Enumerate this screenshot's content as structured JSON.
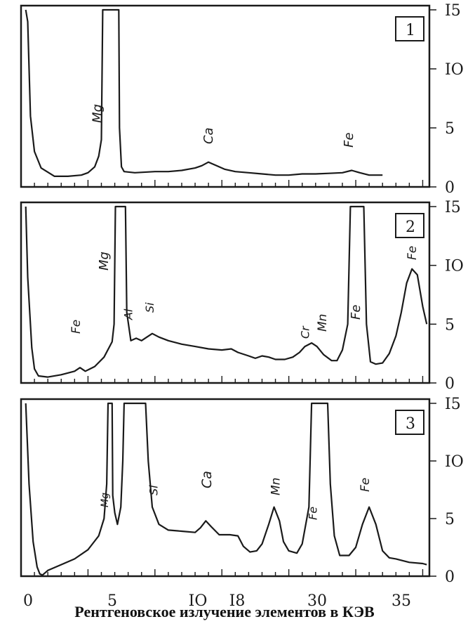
{
  "caption": "Рентгеновское излучение элементов в КЭВ",
  "x_ticks": [
    "0",
    "5",
    "IO",
    "I8",
    "30",
    "35"
  ],
  "chart_data": [
    {
      "type": "line",
      "panel": "1",
      "y_ticks": [
        "I5",
        "IO",
        "5",
        "0"
      ],
      "ylim": [
        0,
        15
      ],
      "peak_labels": [
        "Mg",
        "Ca",
        "Fe"
      ],
      "series": [
        {
          "values": [
            [
              0.35,
              15
            ],
            [
              0.5,
              14
            ],
            [
              0.7,
              6
            ],
            [
              1.0,
              3
            ],
            [
              1.5,
              1.6
            ],
            [
              2.5,
              0.9
            ],
            [
              3.5,
              0.9
            ],
            [
              4.5,
              1.0
            ],
            [
              5.0,
              1.2
            ],
            [
              5.5,
              1.7
            ],
            [
              5.8,
              2.6
            ],
            [
              6.0,
              4
            ],
            [
              6.1,
              15
            ],
            [
              7.3,
              15
            ],
            [
              7.35,
              5
            ],
            [
              7.5,
              1.7
            ],
            [
              7.7,
              1.3
            ],
            [
              8.5,
              1.2
            ],
            [
              10,
              1.3
            ],
            [
              11,
              1.3
            ],
            [
              12,
              1.4
            ],
            [
              13,
              1.6
            ],
            [
              13.5,
              1.8
            ],
            [
              14,
              2.1
            ],
            [
              14.6,
              1.8
            ],
            [
              15.2,
              1.5
            ],
            [
              16,
              1.3
            ],
            [
              17,
              1.2
            ],
            [
              18,
              1.1
            ],
            [
              19,
              1.0
            ],
            [
              20,
              1.0
            ],
            [
              21,
              1.1
            ],
            [
              22,
              1.1
            ],
            [
              23,
              1.15
            ],
            [
              24,
              1.2
            ],
            [
              24.7,
              1.4
            ],
            [
              25.3,
              1.2
            ],
            [
              26,
              1.0
            ],
            [
              27,
              1.0
            ]
          ]
        }
      ]
    },
    {
      "type": "line",
      "panel": "2",
      "y_ticks": [
        "I5",
        "IO",
        "5",
        "0"
      ],
      "ylim": [
        0,
        15
      ],
      "peak_labels": [
        "Fe",
        "Mg",
        "Al",
        "Si",
        "Cr",
        "Mn",
        "Fe",
        "Fe"
      ],
      "series": [
        {
          "values": [
            [
              0.35,
              15
            ],
            [
              0.5,
              9
            ],
            [
              0.8,
              3
            ],
            [
              1.0,
              1.2
            ],
            [
              1.3,
              0.6
            ],
            [
              2.0,
              0.5
            ],
            [
              3.0,
              0.7
            ],
            [
              4.0,
              1.0
            ],
            [
              4.4,
              1.3
            ],
            [
              4.8,
              1.0
            ],
            [
              5.5,
              1.4
            ],
            [
              6.2,
              2.2
            ],
            [
              6.8,
              3.5
            ],
            [
              6.95,
              5
            ],
            [
              7.05,
              15
            ],
            [
              7.8,
              15
            ],
            [
              7.9,
              6
            ],
            [
              8.2,
              3.6
            ],
            [
              8.6,
              3.8
            ],
            [
              9.0,
              3.6
            ],
            [
              9.4,
              3.9
            ],
            [
              9.8,
              4.2
            ],
            [
              10.3,
              3.9
            ],
            [
              11,
              3.6
            ],
            [
              12,
              3.3
            ],
            [
              13,
              3.1
            ],
            [
              14,
              2.9
            ],
            [
              15,
              2.8
            ],
            [
              15.7,
              2.9
            ],
            [
              16.2,
              2.6
            ],
            [
              17,
              2.3
            ],
            [
              17.5,
              2.1
            ],
            [
              18,
              2.3
            ],
            [
              18.5,
              2.2
            ],
            [
              19,
              2.0
            ],
            [
              19.7,
              2.0
            ],
            [
              20.3,
              2.2
            ],
            [
              20.8,
              2.6
            ],
            [
              21.2,
              3.1
            ],
            [
              21.7,
              3.4
            ],
            [
              22.1,
              3.1
            ],
            [
              22.6,
              2.4
            ],
            [
              23.2,
              1.9
            ],
            [
              23.6,
              1.9
            ],
            [
              24.0,
              2.8
            ],
            [
              24.4,
              5
            ],
            [
              24.6,
              15
            ],
            [
              25.6,
              15
            ],
            [
              25.8,
              5
            ],
            [
              26.1,
              1.8
            ],
            [
              26.5,
              1.6
            ],
            [
              27,
              1.7
            ],
            [
              27.5,
              2.5
            ],
            [
              28,
              4
            ],
            [
              28.4,
              6
            ],
            [
              28.8,
              8.5
            ],
            [
              29.2,
              9.7
            ],
            [
              29.6,
              9.2
            ],
            [
              30.0,
              6.5
            ],
            [
              30.3,
              5
            ]
          ]
        }
      ]
    },
    {
      "type": "line",
      "panel": "3",
      "y_ticks": [
        "I5",
        "IO",
        "5",
        "0"
      ],
      "ylim": [
        0,
        15
      ],
      "peak_labels": [
        "Mg",
        "Si",
        "Ca",
        "Mn",
        "Fe",
        "Fe"
      ],
      "series": [
        {
          "values": [
            [
              0.35,
              15
            ],
            [
              0.6,
              8
            ],
            [
              0.9,
              3
            ],
            [
              1.2,
              0.8
            ],
            [
              1.4,
              0.2
            ],
            [
              1.6,
              0.1
            ],
            [
              2.0,
              0.5
            ],
            [
              3.0,
              1.0
            ],
            [
              4.0,
              1.5
            ],
            [
              5.0,
              2.3
            ],
            [
              5.8,
              3.5
            ],
            [
              6.2,
              5
            ],
            [
              6.4,
              8
            ],
            [
              6.5,
              15
            ],
            [
              6.8,
              15
            ],
            [
              6.85,
              7
            ],
            [
              7.0,
              5.5
            ],
            [
              7.2,
              4.5
            ],
            [
              7.45,
              6
            ],
            [
              7.6,
              10
            ],
            [
              7.7,
              15
            ],
            [
              9.3,
              15
            ],
            [
              9.5,
              10
            ],
            [
              9.8,
              6
            ],
            [
              10.3,
              4.5
            ],
            [
              11,
              4.0
            ],
            [
              12,
              3.9
            ],
            [
              13,
              3.8
            ],
            [
              13.4,
              4.2
            ],
            [
              13.8,
              4.8
            ],
            [
              14.2,
              4.3
            ],
            [
              14.8,
              3.6
            ],
            [
              15.6,
              3.6
            ],
            [
              16.2,
              3.5
            ],
            [
              16.6,
              2.6
            ],
            [
              17.1,
              2.1
            ],
            [
              17.6,
              2.2
            ],
            [
              18.0,
              2.8
            ],
            [
              18.5,
              4.5
            ],
            [
              18.9,
              6
            ],
            [
              19.3,
              4.8
            ],
            [
              19.6,
              3.0
            ],
            [
              20.0,
              2.2
            ],
            [
              20.6,
              2.0
            ],
            [
              21.0,
              2.8
            ],
            [
              21.5,
              6
            ],
            [
              21.7,
              15
            ],
            [
              22.9,
              15
            ],
            [
              23.1,
              8
            ],
            [
              23.4,
              3.5
            ],
            [
              23.8,
              1.8
            ],
            [
              24.5,
              1.8
            ],
            [
              25.0,
              2.5
            ],
            [
              25.5,
              4.5
            ],
            [
              26.0,
              6.0
            ],
            [
              26.5,
              4.5
            ],
            [
              27.0,
              2.2
            ],
            [
              27.5,
              1.6
            ],
            [
              28.0,
              1.5
            ],
            [
              29.0,
              1.2
            ],
            [
              30.0,
              1.1
            ],
            [
              30.3,
              1.0
            ]
          ]
        }
      ]
    }
  ]
}
